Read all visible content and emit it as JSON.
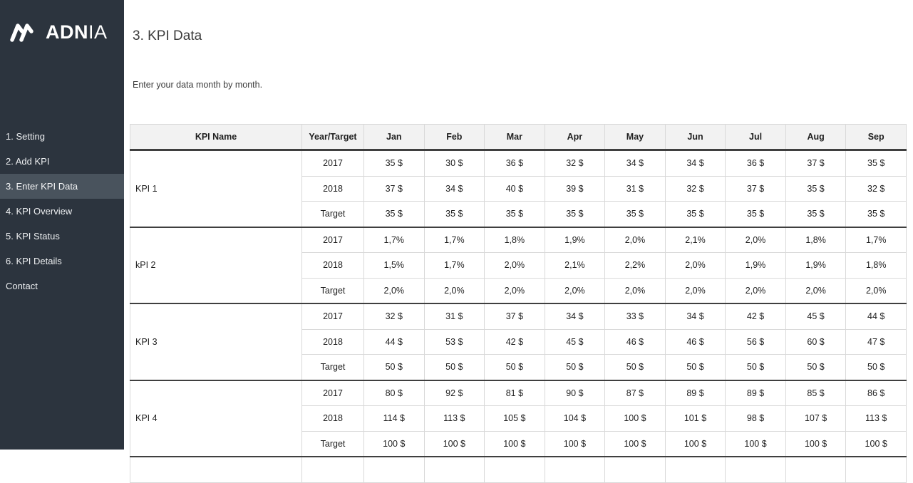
{
  "sidebar": {
    "logo": {
      "icon": "adnia-mark-icon",
      "text_bold": "ADN",
      "text_light": "IA"
    },
    "items": [
      {
        "label": "1. Setting",
        "active": false
      },
      {
        "label": "2. Add KPI",
        "active": false
      },
      {
        "label": "3. Enter KPI Data",
        "active": true
      },
      {
        "label": "4. KPI Overview",
        "active": false
      },
      {
        "label": "5. KPI Status",
        "active": false
      },
      {
        "label": "6. KPI Details",
        "active": false
      },
      {
        "label": "Contact",
        "active": false
      }
    ]
  },
  "header": {
    "title": "3. KPI Data",
    "subtitle": "Enter your data month by month."
  },
  "table": {
    "col_kpi_name": "KPI Name",
    "col_year_target": "Year/Target",
    "months": [
      "Jan",
      "Feb",
      "Mar",
      "Apr",
      "May",
      "Jun",
      "Jul",
      "Aug",
      "Sep"
    ],
    "groups": [
      {
        "name": "KPI 1",
        "rows": [
          {
            "label": "2017",
            "values": [
              "35 $",
              "30 $",
              "36 $",
              "32 $",
              "34 $",
              "34 $",
              "36 $",
              "37 $",
              "35 $"
            ]
          },
          {
            "label": "2018",
            "values": [
              "37 $",
              "34 $",
              "40 $",
              "39 $",
              "31 $",
              "32 $",
              "37 $",
              "35 $",
              "32 $"
            ]
          },
          {
            "label": "Target",
            "values": [
              "35 $",
              "35 $",
              "35 $",
              "35 $",
              "35 $",
              "35 $",
              "35 $",
              "35 $",
              "35 $"
            ]
          }
        ]
      },
      {
        "name": "kPI 2",
        "rows": [
          {
            "label": "2017",
            "values": [
              "1,7%",
              "1,7%",
              "1,8%",
              "1,9%",
              "2,0%",
              "2,1%",
              "2,0%",
              "1,8%",
              "1,7%"
            ]
          },
          {
            "label": "2018",
            "values": [
              "1,5%",
              "1,7%",
              "2,0%",
              "2,1%",
              "2,2%",
              "2,0%",
              "1,9%",
              "1,9%",
              "1,8%"
            ]
          },
          {
            "label": "Target",
            "values": [
              "2,0%",
              "2,0%",
              "2,0%",
              "2,0%",
              "2,0%",
              "2,0%",
              "2,0%",
              "2,0%",
              "2,0%"
            ]
          }
        ]
      },
      {
        "name": "KPI 3",
        "rows": [
          {
            "label": "2017",
            "values": [
              "32 $",
              "31 $",
              "37 $",
              "34 $",
              "33 $",
              "34 $",
              "42 $",
              "45 $",
              "44 $"
            ]
          },
          {
            "label": "2018",
            "values": [
              "44 $",
              "53 $",
              "42 $",
              "45 $",
              "46 $",
              "46 $",
              "56 $",
              "60 $",
              "47 $"
            ]
          },
          {
            "label": "Target",
            "values": [
              "50 $",
              "50 $",
              "50 $",
              "50 $",
              "50 $",
              "50 $",
              "50 $",
              "50 $",
              "50 $"
            ]
          }
        ]
      },
      {
        "name": "KPI 4",
        "rows": [
          {
            "label": "2017",
            "values": [
              "80 $",
              "92 $",
              "81 $",
              "90 $",
              "87 $",
              "89 $",
              "89 $",
              "85 $",
              "86 $"
            ]
          },
          {
            "label": "2018",
            "values": [
              "114 $",
              "113 $",
              "105 $",
              "104 $",
              "100 $",
              "101 $",
              "98 $",
              "107 $",
              "113 $"
            ]
          },
          {
            "label": "Target",
            "values": [
              "100 $",
              "100 $",
              "100 $",
              "100 $",
              "100 $",
              "100 $",
              "100 $",
              "100 $",
              "100 $"
            ]
          }
        ]
      }
    ]
  },
  "colors": {
    "sidebar_bg": "#2C343E",
    "sidebar_active_bg": "#49535D",
    "brand_text": "#FFFFFF",
    "header_row_bg": "#F2F2F2",
    "dark_border": "#3F3F3F",
    "light_border": "#D9D9D9",
    "body_text": "#1F1F1F",
    "title_text": "#3B3B3B"
  }
}
